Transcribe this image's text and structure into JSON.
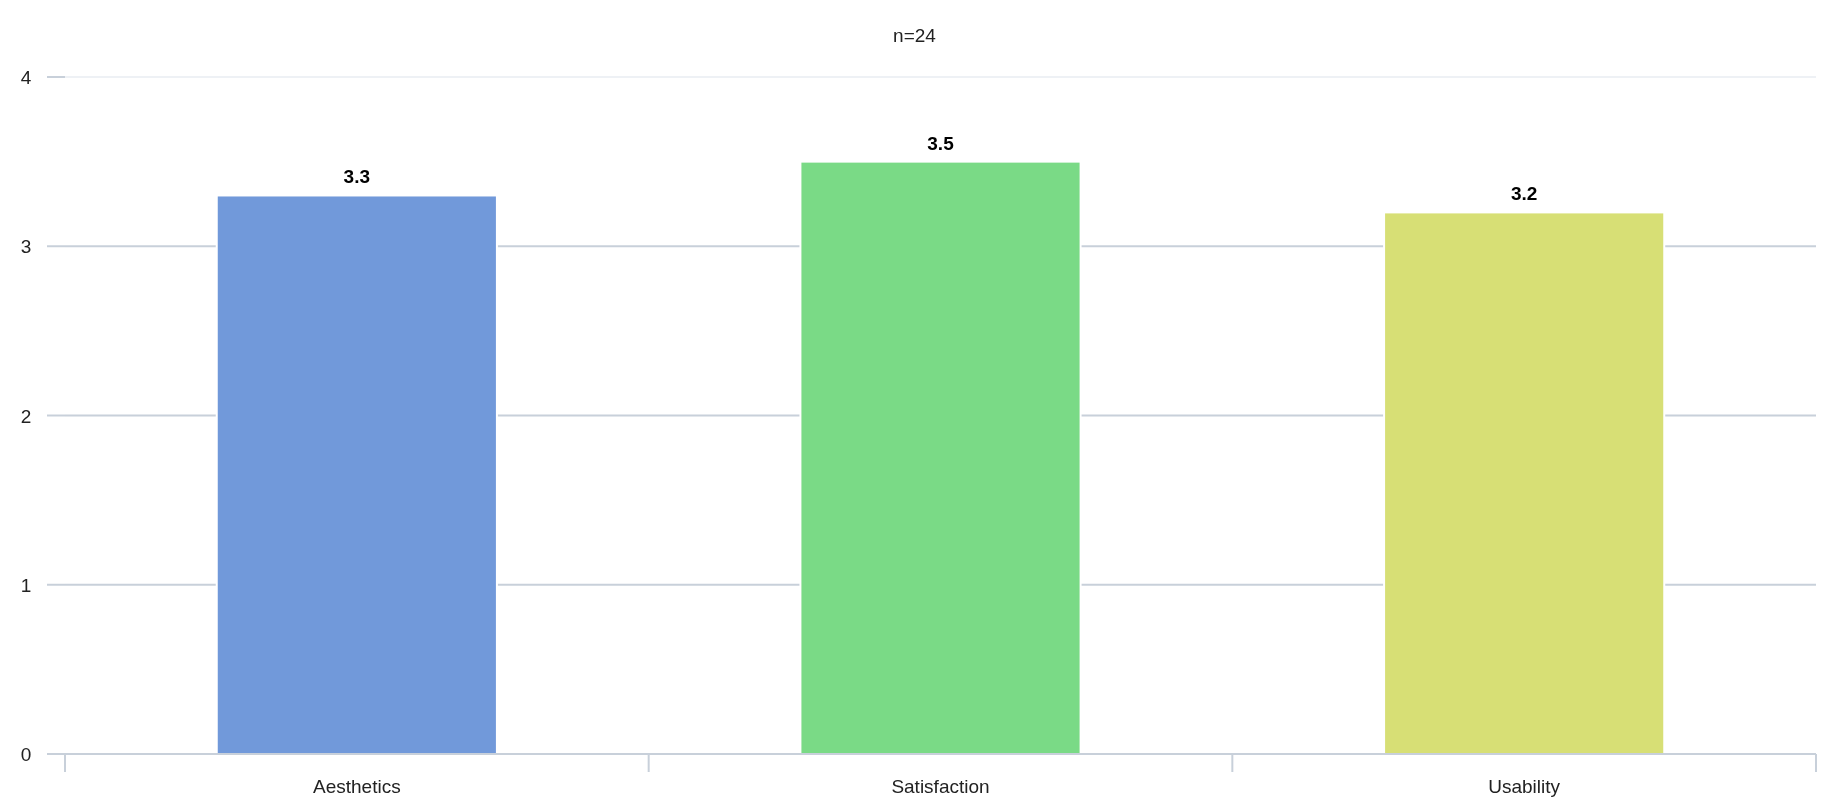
{
  "chart_data": {
    "type": "bar",
    "title": "n=24",
    "categories": [
      "Aesthetics",
      "Satisfaction",
      "Usability"
    ],
    "values": [
      3.3,
      3.5,
      3.2
    ],
    "colors": [
      "#7199da",
      "#7ada86",
      "#d7df75"
    ],
    "ylim": [
      0,
      4
    ],
    "yticks": [
      0,
      1,
      2,
      3,
      4
    ],
    "grid": "y",
    "data_labels": true
  }
}
